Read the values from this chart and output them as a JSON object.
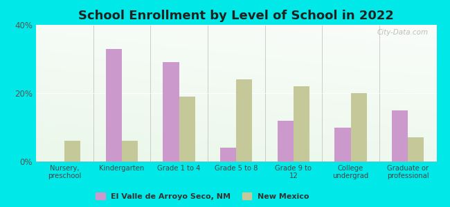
{
  "title": "School Enrollment by Level of School in 2022",
  "categories": [
    "Nursery,\npreschool",
    "Kindergarten",
    "Grade 1 to 4",
    "Grade 5 to 8",
    "Grade 9 to\n12",
    "College\nundergrad",
    "Graduate or\nprofessional"
  ],
  "el_valle": [
    0.0,
    33.0,
    29.0,
    4.0,
    12.0,
    10.0,
    15.0
  ],
  "new_mexico": [
    6.0,
    6.0,
    19.0,
    24.0,
    22.0,
    20.0,
    7.0
  ],
  "el_valle_color": "#cc99cc",
  "new_mexico_color": "#c5c99a",
  "bg_color": "#00e8e8",
  "ylim": [
    0,
    40
  ],
  "yticks": [
    0,
    20,
    40
  ],
  "ytick_labels": [
    "0%",
    "20%",
    "40%"
  ],
  "title_fontsize": 13,
  "legend_label1": "El Valle de Arroyo Seco, NM",
  "legend_label2": "New Mexico",
  "watermark": "City-Data.com"
}
